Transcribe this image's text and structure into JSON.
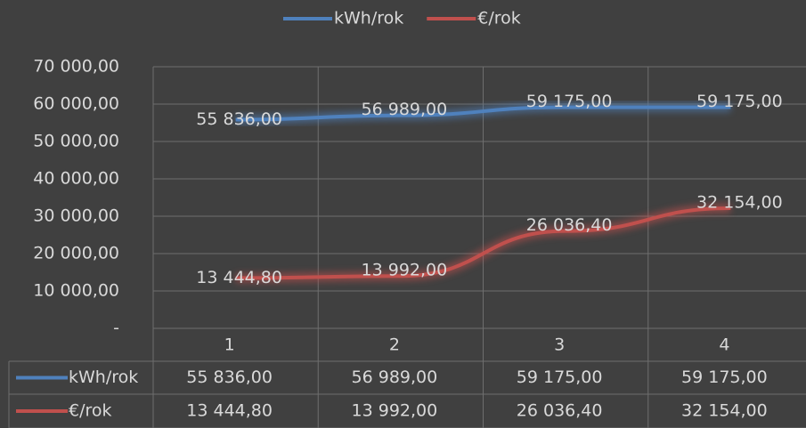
{
  "chart_data": {
    "type": "line",
    "categories": [
      "1",
      "2",
      "3",
      "4"
    ],
    "series": [
      {
        "name": "kWh/rok",
        "color": "#4f81bd",
        "values": [
          55836,
          56989,
          59175,
          59175
        ],
        "value_labels": [
          "55 836,00",
          "56 989,00",
          "59 175,00",
          "59 175,00"
        ]
      },
      {
        "name": "€/rok",
        "color": "#c0504d",
        "values": [
          13444.8,
          13992,
          26036.4,
          32154
        ],
        "value_labels": [
          "13 444,80",
          "13 992,00",
          "26 036,40",
          "32 154,00"
        ]
      }
    ],
    "ylim": [
      0,
      70000
    ],
    "yticks": [
      {
        "value": 0,
        "label": "-"
      },
      {
        "value": 10000,
        "label": "10 000,00"
      },
      {
        "value": 20000,
        "label": "20 000,00"
      },
      {
        "value": 30000,
        "label": "30 000,00"
      },
      {
        "value": 40000,
        "label": "40 000,00"
      },
      {
        "value": 50000,
        "label": "50 000,00"
      },
      {
        "value": 60000,
        "label": "60 000,00"
      },
      {
        "value": 70000,
        "label": "70 000,00"
      }
    ],
    "grid": true,
    "legend": "top",
    "data_table": true
  }
}
